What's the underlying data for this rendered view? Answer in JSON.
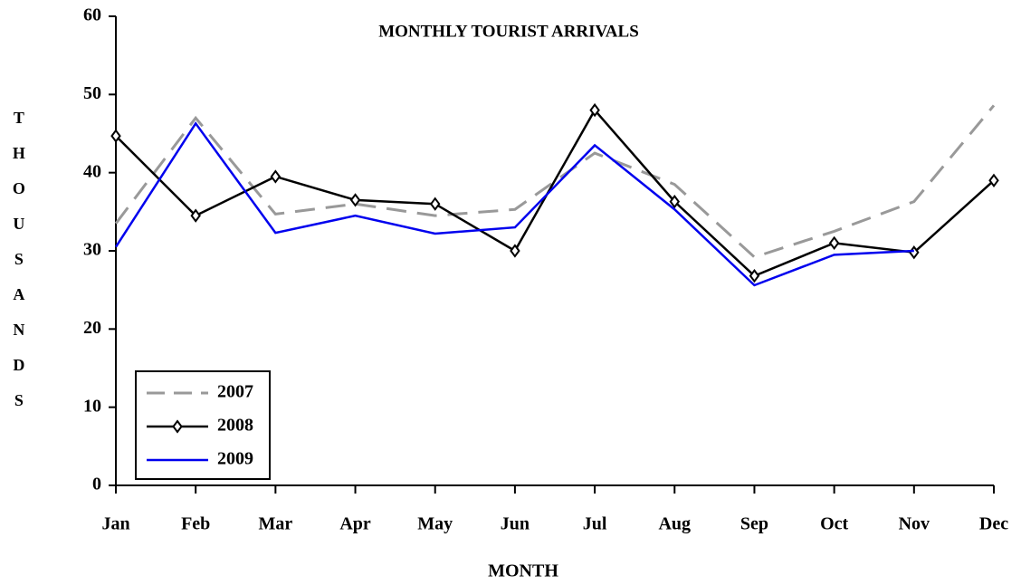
{
  "chart_data": {
    "type": "line",
    "title": "MONTHLY TOURIST ARRIVALS",
    "x_label": "MONTH",
    "y_label": "THOUSANDS",
    "categories": [
      "Jan",
      "Feb",
      "Mar",
      "Apr",
      "May",
      "Jun",
      "Jul",
      "Aug",
      "Sep",
      "Oct",
      "Nov",
      "Dec"
    ],
    "series": [
      {
        "name": "2007",
        "color": "#999999",
        "style": "dashed",
        "marker": "none",
        "values": [
          33.5,
          47,
          34.7,
          36,
          34.5,
          35.3,
          42.5,
          38.5,
          29.2,
          32.5,
          36.3,
          48.6
        ]
      },
      {
        "name": "2008",
        "color": "#000000",
        "style": "solid",
        "marker": "diamond",
        "values": [
          44.7,
          34.5,
          39.5,
          36.5,
          36,
          30,
          48,
          36.3,
          26.8,
          31,
          29.8,
          39
        ]
      },
      {
        "name": "2009",
        "color": "#0000ee",
        "style": "solid",
        "marker": "none",
        "values": [
          30.5,
          46.3,
          32.3,
          34.5,
          32.2,
          33,
          43.5,
          35.3,
          25.6,
          29.5,
          30,
          null
        ]
      }
    ],
    "ylim": [
      0,
      60
    ],
    "yticks": [
      0,
      10,
      20,
      30,
      40,
      50,
      60
    ],
    "grid": false,
    "legend_position": "lower-left"
  }
}
